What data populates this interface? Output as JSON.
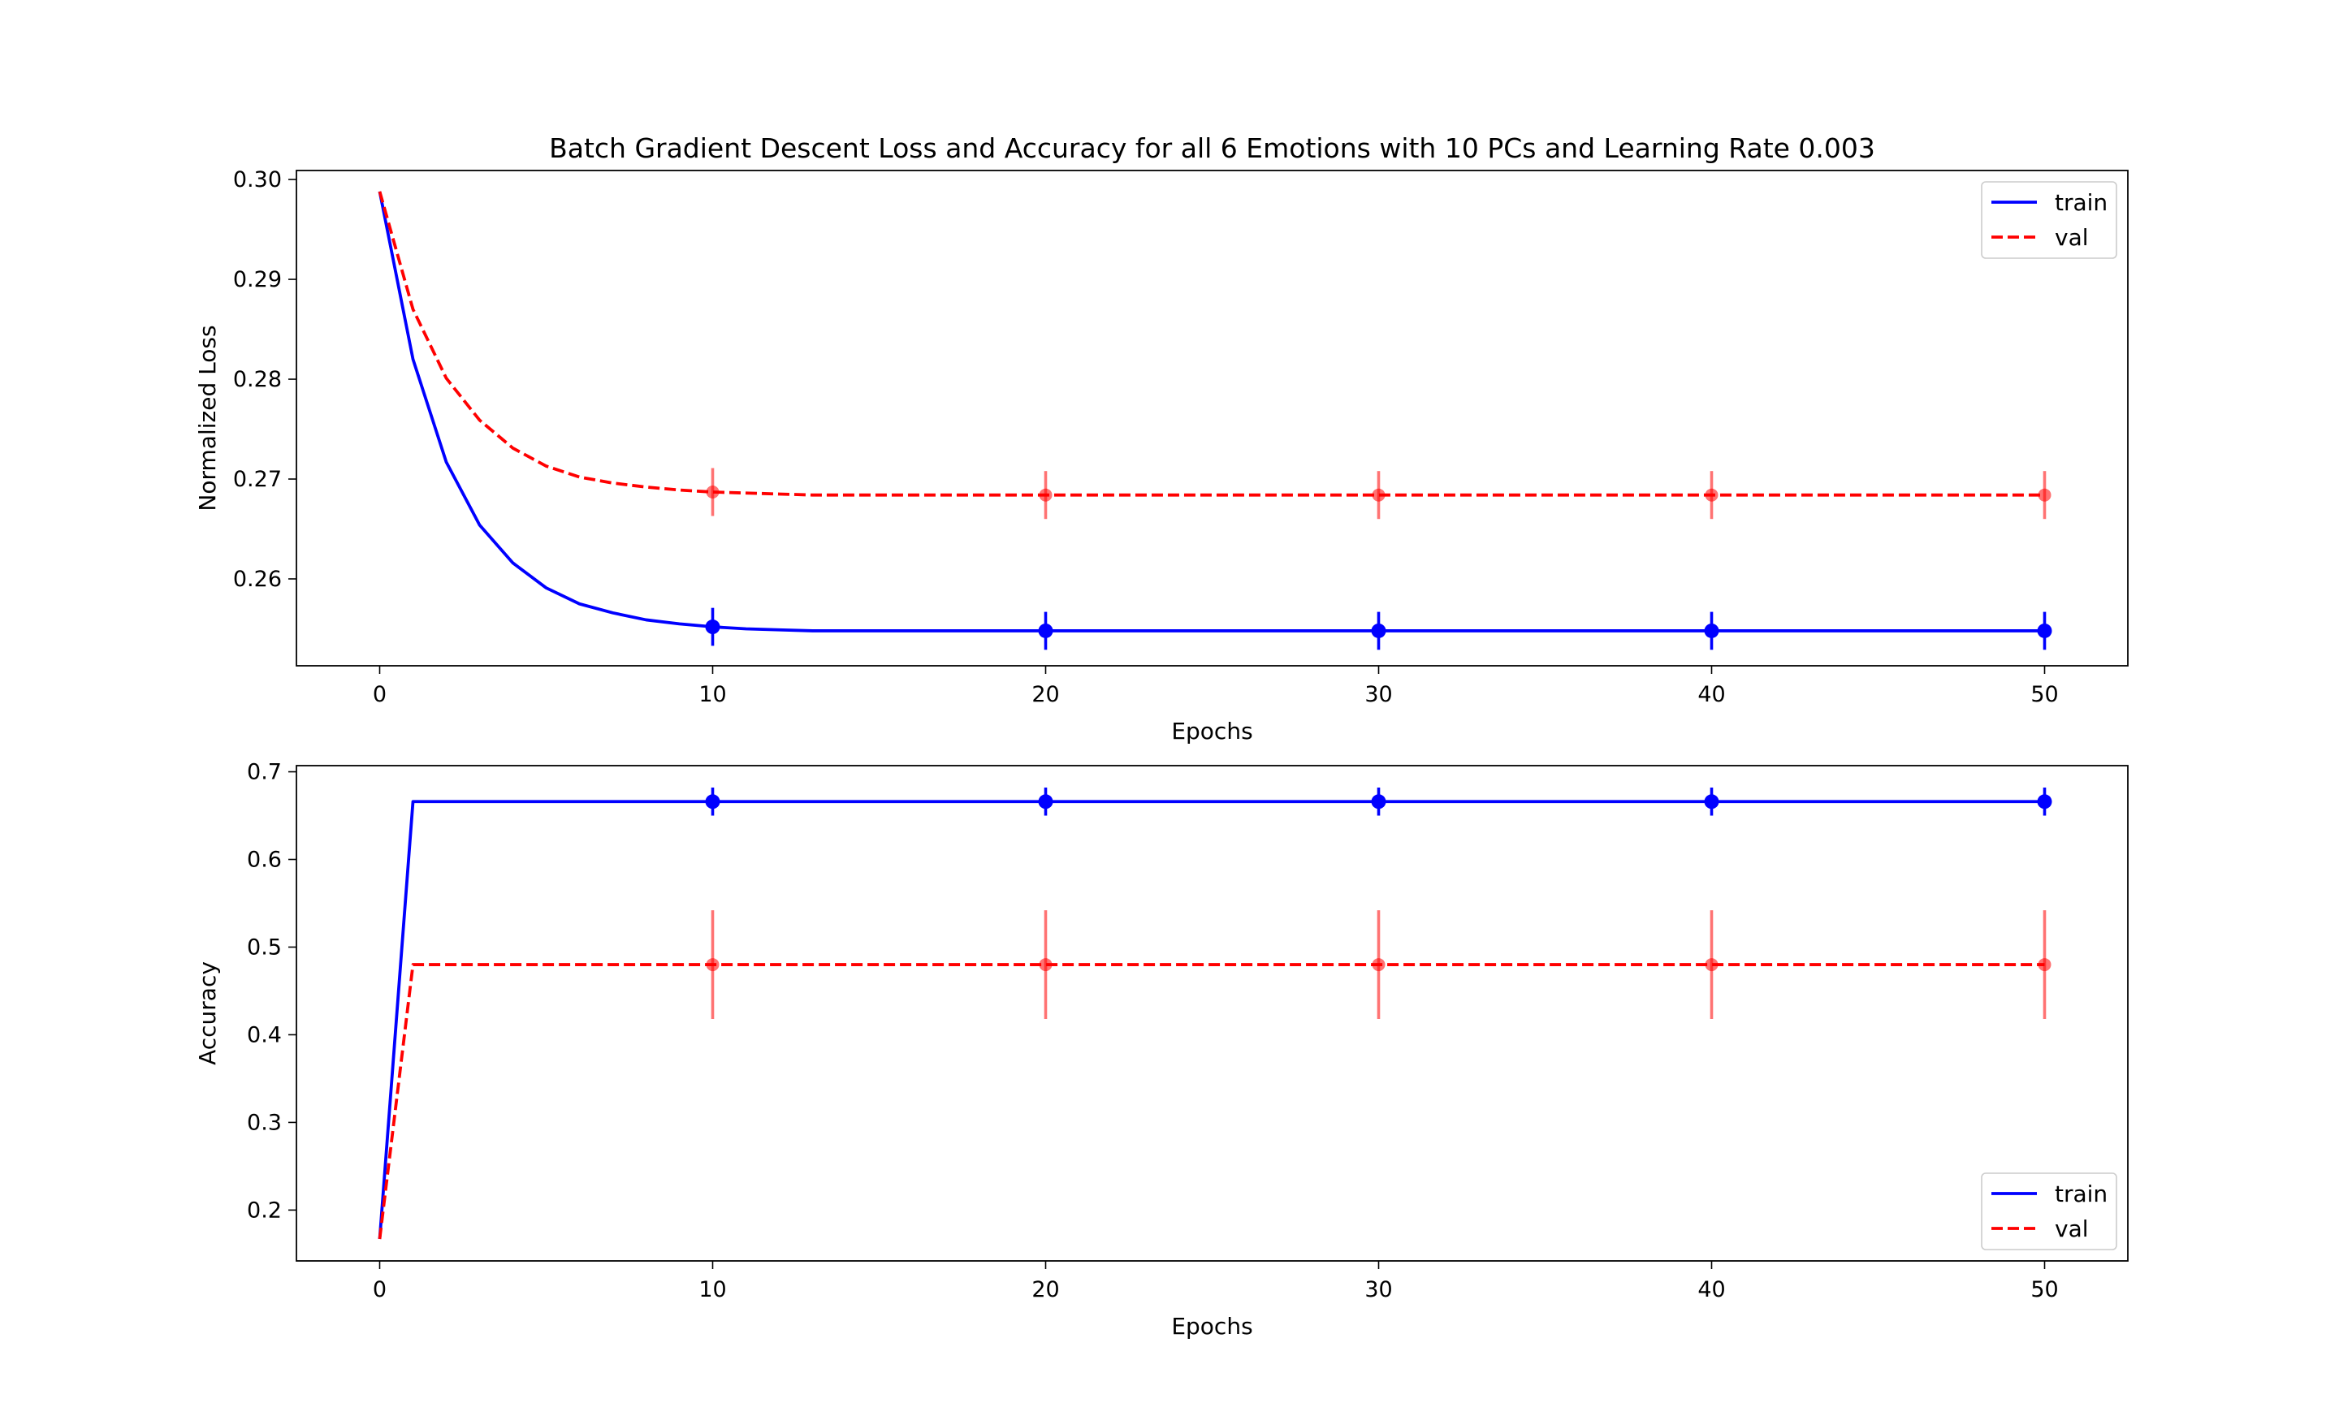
{
  "chart_data": [
    {
      "type": "line",
      "title": "Batch Gradient Descent Loss and Accuracy for all 6 Emotions with 10 PCs and Learning Rate 0.003",
      "xlabel": "Epochs",
      "ylabel": "Normalized Loss",
      "xlim": [
        -2.5,
        52.5
      ],
      "ylim": [
        0.2513,
        0.3009
      ],
      "xticks": [
        0,
        10,
        20,
        30,
        40,
        50
      ],
      "xtick_labels": [
        "0",
        "10",
        "20",
        "30",
        "40",
        "50"
      ],
      "yticks": [
        0.26,
        0.27,
        0.28,
        0.29,
        0.3
      ],
      "ytick_labels": [
        "0.26",
        "0.27",
        "0.28",
        "0.29",
        "0.30"
      ],
      "grid": false,
      "legend_position": "upper right",
      "x": [
        0,
        1,
        2,
        3,
        4,
        5,
        6,
        7,
        8,
        9,
        10,
        11,
        12,
        13,
        14,
        15,
        16,
        17,
        18,
        19,
        20,
        21,
        22,
        23,
        24,
        25,
        26,
        27,
        28,
        29,
        30,
        31,
        32,
        33,
        34,
        35,
        36,
        37,
        38,
        39,
        40,
        41,
        42,
        43,
        44,
        45,
        46,
        47,
        48,
        49,
        50
      ],
      "series": [
        {
          "name": "train",
          "color": "#0000ff",
          "linestyle": "solid",
          "values": [
            0.2988,
            0.282,
            0.2717,
            0.2654,
            0.2616,
            0.2591,
            0.2575,
            0.2566,
            0.2559,
            0.2555,
            0.2552,
            0.255,
            0.2549,
            0.2548,
            0.2548,
            0.2548,
            0.2548,
            0.2548,
            0.2548,
            0.2548,
            0.2548,
            0.2548,
            0.2548,
            0.2548,
            0.2548,
            0.2548,
            0.2548,
            0.2548,
            0.2548,
            0.2548,
            0.2548,
            0.2548,
            0.2548,
            0.2548,
            0.2548,
            0.2548,
            0.2548,
            0.2548,
            0.2548,
            0.2548,
            0.2548,
            0.2548,
            0.2548,
            0.2548,
            0.2548,
            0.2548,
            0.2548,
            0.2548,
            0.2548,
            0.2548,
            0.2548
          ],
          "error_bars": [
            {
              "x": 10,
              "y": 0.2552,
              "err": 0.0019
            },
            {
              "x": 20,
              "y": 0.2548,
              "err": 0.0019
            },
            {
              "x": 30,
              "y": 0.2548,
              "err": 0.0019
            },
            {
              "x": 40,
              "y": 0.2548,
              "err": 0.0019
            },
            {
              "x": 50,
              "y": 0.2548,
              "err": 0.0019
            }
          ]
        },
        {
          "name": "val",
          "color": "#ff0000",
          "linestyle": "dashed",
          "values": [
            0.2988,
            0.287,
            0.2801,
            0.2759,
            0.2731,
            0.2713,
            0.2702,
            0.2696,
            0.2692,
            0.2689,
            0.2687,
            0.2686,
            0.2685,
            0.2684,
            0.2684,
            0.2684,
            0.2684,
            0.2684,
            0.2684,
            0.2684,
            0.2684,
            0.2684,
            0.2684,
            0.2684,
            0.2684,
            0.2684,
            0.2684,
            0.2684,
            0.2684,
            0.2684,
            0.2684,
            0.2684,
            0.2684,
            0.2684,
            0.2684,
            0.2684,
            0.2684,
            0.2684,
            0.2684,
            0.2684,
            0.2684,
            0.2684,
            0.2684,
            0.2684,
            0.2684,
            0.2684,
            0.2684,
            0.2684,
            0.2684,
            0.2684,
            0.2684
          ],
          "error_bars": [
            {
              "x": 10,
              "y": 0.2687,
              "err": 0.0024
            },
            {
              "x": 20,
              "y": 0.2684,
              "err": 0.0024
            },
            {
              "x": 30,
              "y": 0.2684,
              "err": 0.0024
            },
            {
              "x": 40,
              "y": 0.2684,
              "err": 0.0024
            },
            {
              "x": 50,
              "y": 0.2684,
              "err": 0.0024
            }
          ]
        }
      ]
    },
    {
      "type": "line",
      "title": "",
      "xlabel": "Epochs",
      "ylabel": "Accuracy",
      "xlim": [
        -2.5,
        52.5
      ],
      "ylim": [
        0.142,
        0.707
      ],
      "xticks": [
        0,
        10,
        20,
        30,
        40,
        50
      ],
      "xtick_labels": [
        "0",
        "10",
        "20",
        "30",
        "40",
        "50"
      ],
      "yticks": [
        0.2,
        0.3,
        0.4,
        0.5,
        0.6,
        0.7
      ],
      "ytick_labels": [
        "0.2",
        "0.3",
        "0.4",
        "0.5",
        "0.6",
        "0.7"
      ],
      "grid": false,
      "legend_position": "lower right",
      "x": [
        0,
        1,
        2,
        3,
        4,
        5,
        6,
        7,
        8,
        9,
        10,
        11,
        12,
        13,
        14,
        15,
        16,
        17,
        18,
        19,
        20,
        21,
        22,
        23,
        24,
        25,
        26,
        27,
        28,
        29,
        30,
        31,
        32,
        33,
        34,
        35,
        36,
        37,
        38,
        39,
        40,
        41,
        42,
        43,
        44,
        45,
        46,
        47,
        48,
        49,
        50
      ],
      "series": [
        {
          "name": "train",
          "color": "#0000ff",
          "linestyle": "solid",
          "values": [
            0.167,
            0.666,
            0.666,
            0.666,
            0.666,
            0.666,
            0.666,
            0.666,
            0.666,
            0.666,
            0.666,
            0.666,
            0.666,
            0.666,
            0.666,
            0.666,
            0.666,
            0.666,
            0.666,
            0.666,
            0.666,
            0.666,
            0.666,
            0.666,
            0.666,
            0.666,
            0.666,
            0.666,
            0.666,
            0.666,
            0.666,
            0.666,
            0.666,
            0.666,
            0.666,
            0.666,
            0.666,
            0.666,
            0.666,
            0.666,
            0.666,
            0.666,
            0.666,
            0.666,
            0.666,
            0.666,
            0.666,
            0.666,
            0.666,
            0.666,
            0.666
          ],
          "error_bars": [
            {
              "x": 10,
              "y": 0.666,
              "err": 0.016
            },
            {
              "x": 20,
              "y": 0.666,
              "err": 0.016
            },
            {
              "x": 30,
              "y": 0.666,
              "err": 0.016
            },
            {
              "x": 40,
              "y": 0.666,
              "err": 0.016
            },
            {
              "x": 50,
              "y": 0.666,
              "err": 0.016
            }
          ]
        },
        {
          "name": "val",
          "color": "#ff0000",
          "linestyle": "dashed",
          "values": [
            0.167,
            0.48,
            0.48,
            0.48,
            0.48,
            0.48,
            0.48,
            0.48,
            0.48,
            0.48,
            0.48,
            0.48,
            0.48,
            0.48,
            0.48,
            0.48,
            0.48,
            0.48,
            0.48,
            0.48,
            0.48,
            0.48,
            0.48,
            0.48,
            0.48,
            0.48,
            0.48,
            0.48,
            0.48,
            0.48,
            0.48,
            0.48,
            0.48,
            0.48,
            0.48,
            0.48,
            0.48,
            0.48,
            0.48,
            0.48,
            0.48,
            0.48,
            0.48,
            0.48,
            0.48,
            0.48,
            0.48,
            0.48,
            0.48,
            0.48,
            0.48
          ],
          "error_bars": [
            {
              "x": 10,
              "y": 0.48,
              "err": 0.062
            },
            {
              "x": 20,
              "y": 0.48,
              "err": 0.062
            },
            {
              "x": 30,
              "y": 0.48,
              "err": 0.062
            },
            {
              "x": 40,
              "y": 0.48,
              "err": 0.062
            },
            {
              "x": 50,
              "y": 0.48,
              "err": 0.062
            }
          ]
        }
      ]
    }
  ]
}
